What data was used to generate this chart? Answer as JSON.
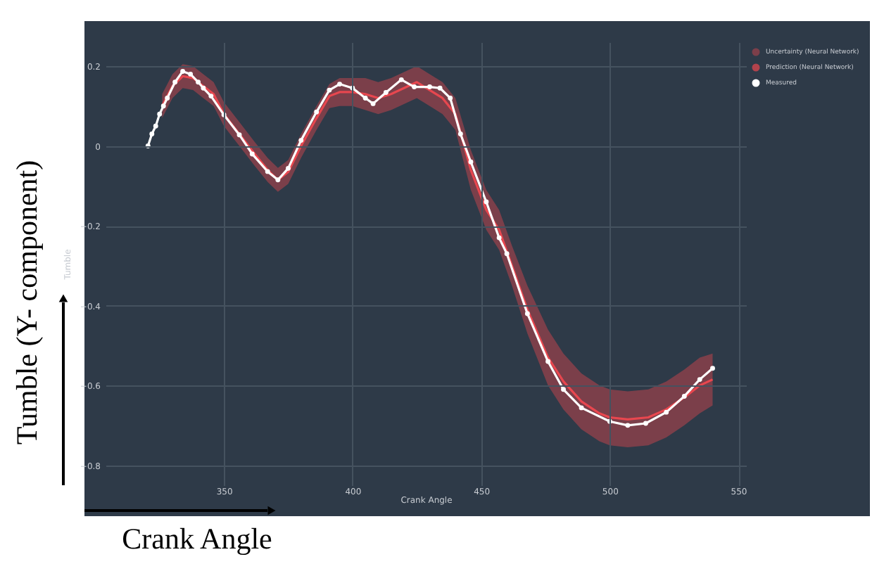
{
  "chart_data": {
    "type": "line",
    "xlabel": "Crank Angle",
    "ylabel": "Tumble",
    "xlim": [
      304,
      553
    ],
    "ylim": [
      -0.85,
      0.26
    ],
    "xticks": [
      350,
      400,
      450,
      500,
      550
    ],
    "yticks": [
      -0.8,
      -0.6,
      -0.4,
      -0.2,
      0,
      0.2
    ],
    "grid": true,
    "legend": "top right",
    "annotations": [
      "Tumble (Y- component)",
      "Crank Angle",
      "Uncertainty (Neural Network)"
    ],
    "series": [
      {
        "name": "Prediction (Neural Network)",
        "type": "line",
        "color": "#e8474f",
        "x": [
          326,
          330,
          334,
          338,
          342,
          346,
          350,
          356,
          362,
          367,
          371,
          375,
          380,
          386,
          391,
          395,
          400,
          405,
          410,
          415,
          420,
          425,
          430,
          435,
          440,
          446,
          452,
          457,
          462,
          468,
          476,
          482,
          489,
          496,
          500,
          507,
          515,
          522,
          529,
          535,
          540
        ],
        "values": [
          0.1,
          0.15,
          0.175,
          0.17,
          0.15,
          0.13,
          0.08,
          0.03,
          -0.02,
          -0.06,
          -0.085,
          -0.065,
          0.0,
          0.07,
          0.125,
          0.135,
          0.135,
          0.13,
          0.12,
          0.13,
          0.145,
          0.16,
          0.14,
          0.12,
          0.08,
          -0.06,
          -0.16,
          -0.21,
          -0.3,
          -0.41,
          -0.53,
          -0.59,
          -0.64,
          -0.67,
          -0.68,
          -0.685,
          -0.68,
          -0.66,
          -0.63,
          -0.6,
          -0.585
        ],
        "lower": [
          0.07,
          0.12,
          0.145,
          0.14,
          0.12,
          0.1,
          0.05,
          0.0,
          -0.05,
          -0.09,
          -0.115,
          -0.095,
          -0.03,
          0.04,
          0.095,
          0.1,
          0.1,
          0.09,
          0.08,
          0.09,
          0.105,
          0.12,
          0.1,
          0.08,
          0.04,
          -0.11,
          -0.21,
          -0.26,
          -0.35,
          -0.47,
          -0.6,
          -0.66,
          -0.71,
          -0.74,
          -0.75,
          -0.755,
          -0.75,
          -0.73,
          -0.7,
          -0.67,
          -0.65
        ],
        "upper": [
          0.13,
          0.18,
          0.205,
          0.2,
          0.18,
          0.16,
          0.11,
          0.06,
          0.01,
          -0.03,
          -0.055,
          -0.035,
          0.03,
          0.1,
          0.155,
          0.17,
          0.17,
          0.17,
          0.16,
          0.17,
          0.185,
          0.2,
          0.18,
          0.16,
          0.12,
          -0.01,
          -0.11,
          -0.16,
          -0.25,
          -0.35,
          -0.46,
          -0.52,
          -0.57,
          -0.6,
          -0.61,
          -0.615,
          -0.61,
          -0.59,
          -0.56,
          -0.53,
          -0.52
        ]
      },
      {
        "name": "Measured",
        "type": "line",
        "marker": "circle",
        "color": "#ffffff",
        "x": [
          320.5,
          322,
          323.5,
          325,
          326.5,
          328,
          331,
          334,
          337,
          340,
          342,
          345,
          350,
          356,
          361,
          367,
          371,
          375,
          380,
          386,
          391,
          395,
          400,
          405,
          408,
          413,
          419,
          424,
          430,
          434,
          438,
          442,
          446,
          452,
          457,
          460,
          468,
          476,
          482,
          489,
          500,
          507,
          514,
          522,
          529,
          535,
          540
        ],
        "values": [
          0,
          0.03,
          0.05,
          0.08,
          0.1,
          0.12,
          0.16,
          0.187,
          0.18,
          0.16,
          0.145,
          0.125,
          0.078,
          0.028,
          -0.02,
          -0.064,
          -0.085,
          -0.056,
          0.014,
          0.085,
          0.14,
          0.155,
          0.145,
          0.12,
          0.106,
          0.134,
          0.166,
          0.148,
          0.148,
          0.145,
          0.12,
          0.03,
          -0.04,
          -0.14,
          -0.23,
          -0.27,
          -0.42,
          -0.54,
          -0.61,
          -0.656,
          -0.69,
          -0.7,
          -0.695,
          -0.667,
          -0.627,
          -0.585,
          -0.557
        ]
      }
    ]
  }
}
